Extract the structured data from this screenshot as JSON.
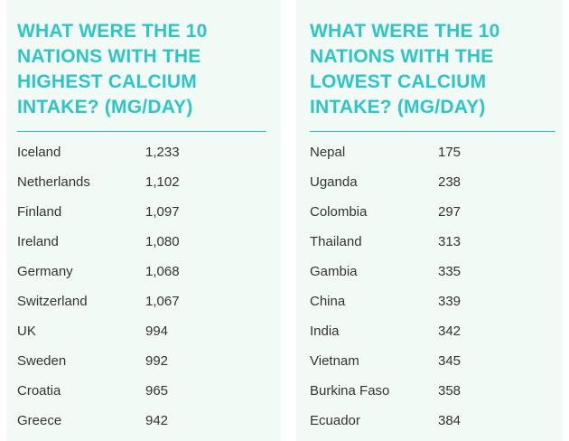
{
  "tables": [
    {
      "title": "WHAT WERE THE 10 NATIONS WITH THE HIGHEST CALCIUM INTAKE? (MG/DAY)",
      "rows": [
        [
          "Iceland",
          "1,233"
        ],
        [
          "Netherlands",
          "1,102"
        ],
        [
          "Finland",
          "1,097"
        ],
        [
          "Ireland",
          "1,080"
        ],
        [
          "Germany",
          "1,068"
        ],
        [
          "Switzerland",
          "1,067"
        ],
        [
          "UK",
          "994"
        ],
        [
          "Sweden",
          "992"
        ],
        [
          "Croatia",
          "965"
        ],
        [
          "Greece",
          "942"
        ]
      ]
    },
    {
      "title": "WHAT WERE THE 10 NATIONS WITH THE LOWEST CALCIUM INTAKE? (MG/DAY)",
      "rows": [
        [
          "Nepal",
          "175"
        ],
        [
          "Uganda",
          "238"
        ],
        [
          "Colombia",
          "297"
        ],
        [
          "Thailand",
          "313"
        ],
        [
          "Gambia",
          "335"
        ],
        [
          "China",
          "339"
        ],
        [
          "India",
          "342"
        ],
        [
          "Vietnam",
          "345"
        ],
        [
          "Burkina Faso",
          "358"
        ],
        [
          "Ecuador",
          "384"
        ]
      ]
    }
  ]
}
